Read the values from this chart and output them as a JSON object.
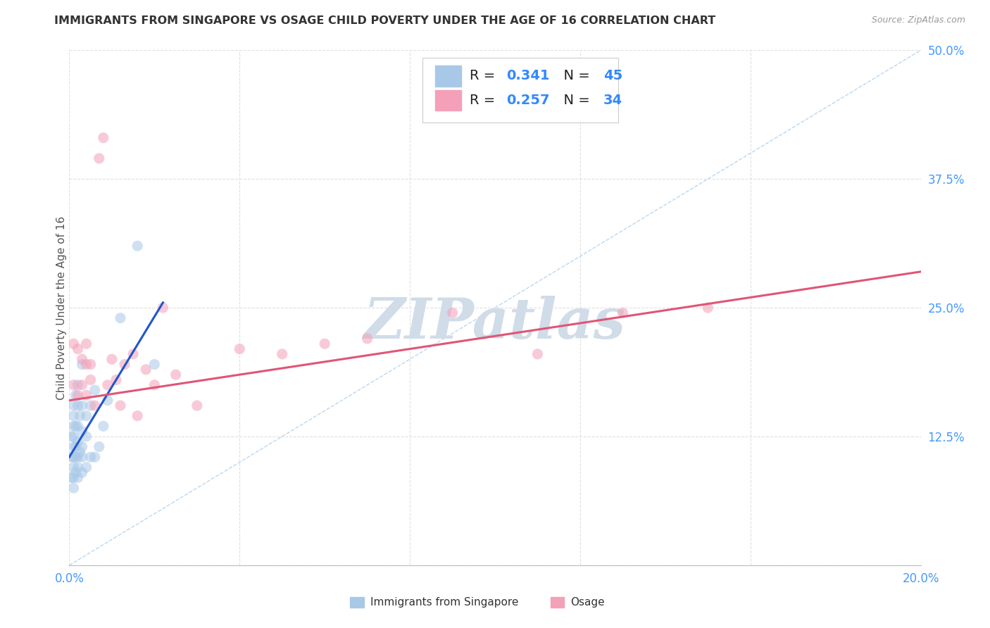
{
  "title": "IMMIGRANTS FROM SINGAPORE VS OSAGE CHILD POVERTY UNDER THE AGE OF 16 CORRELATION CHART",
  "source": "Source: ZipAtlas.com",
  "ylabel": "Child Poverty Under the Age of 16",
  "xlim": [
    0.0,
    0.2
  ],
  "ylim": [
    0.0,
    0.5
  ],
  "background_color": "#ffffff",
  "grid_color": "#e0e0e0",
  "legend1_color": "#a8c8e8",
  "legend2_color": "#f4a0b8",
  "watermark": "ZIPatlas",
  "watermark_color": "#d0dce8",
  "singapore_scatter_x": [
    0.0005,
    0.0005,
    0.0005,
    0.001,
    0.001,
    0.001,
    0.001,
    0.001,
    0.001,
    0.001,
    0.001,
    0.001,
    0.0015,
    0.0015,
    0.0015,
    0.0015,
    0.0015,
    0.002,
    0.002,
    0.002,
    0.002,
    0.002,
    0.002,
    0.002,
    0.0025,
    0.0025,
    0.003,
    0.003,
    0.003,
    0.003,
    0.003,
    0.003,
    0.004,
    0.004,
    0.004,
    0.005,
    0.005,
    0.006,
    0.006,
    0.007,
    0.008,
    0.009,
    0.012,
    0.016,
    0.02
  ],
  "singapore_scatter_y": [
    0.085,
    0.105,
    0.125,
    0.075,
    0.085,
    0.095,
    0.105,
    0.115,
    0.125,
    0.135,
    0.145,
    0.155,
    0.09,
    0.105,
    0.115,
    0.135,
    0.165,
    0.085,
    0.095,
    0.105,
    0.12,
    0.135,
    0.155,
    0.175,
    0.11,
    0.145,
    0.09,
    0.105,
    0.115,
    0.13,
    0.155,
    0.195,
    0.095,
    0.125,
    0.145,
    0.105,
    0.155,
    0.105,
    0.17,
    0.115,
    0.135,
    0.16,
    0.24,
    0.31,
    0.195
  ],
  "osage_scatter_x": [
    0.001,
    0.001,
    0.002,
    0.002,
    0.003,
    0.003,
    0.004,
    0.004,
    0.004,
    0.005,
    0.005,
    0.006,
    0.007,
    0.008,
    0.009,
    0.01,
    0.011,
    0.012,
    0.013,
    0.015,
    0.016,
    0.018,
    0.02,
    0.022,
    0.025,
    0.03,
    0.04,
    0.05,
    0.06,
    0.07,
    0.09,
    0.11,
    0.13,
    0.15
  ],
  "osage_scatter_y": [
    0.175,
    0.215,
    0.165,
    0.21,
    0.175,
    0.2,
    0.165,
    0.195,
    0.215,
    0.18,
    0.195,
    0.155,
    0.395,
    0.415,
    0.175,
    0.2,
    0.18,
    0.155,
    0.195,
    0.205,
    0.145,
    0.19,
    0.175,
    0.25,
    0.185,
    0.155,
    0.21,
    0.205,
    0.215,
    0.22,
    0.245,
    0.205,
    0.245,
    0.25
  ],
  "singapore_line_x": [
    0.0,
    0.022
  ],
  "singapore_line_y": [
    0.105,
    0.255
  ],
  "osage_line_x": [
    0.0,
    0.2
  ],
  "osage_line_y": [
    0.16,
    0.285
  ],
  "diagonal_line_x": [
    0.0,
    0.2
  ],
  "diagonal_line_y": [
    0.0,
    0.5
  ],
  "title_fontsize": 11.5,
  "ylabel_fontsize": 11,
  "tick_fontsize": 12,
  "legend_fontsize": 14,
  "scatter_size": 120,
  "scatter_alpha": 0.55,
  "line_width": 2.2
}
